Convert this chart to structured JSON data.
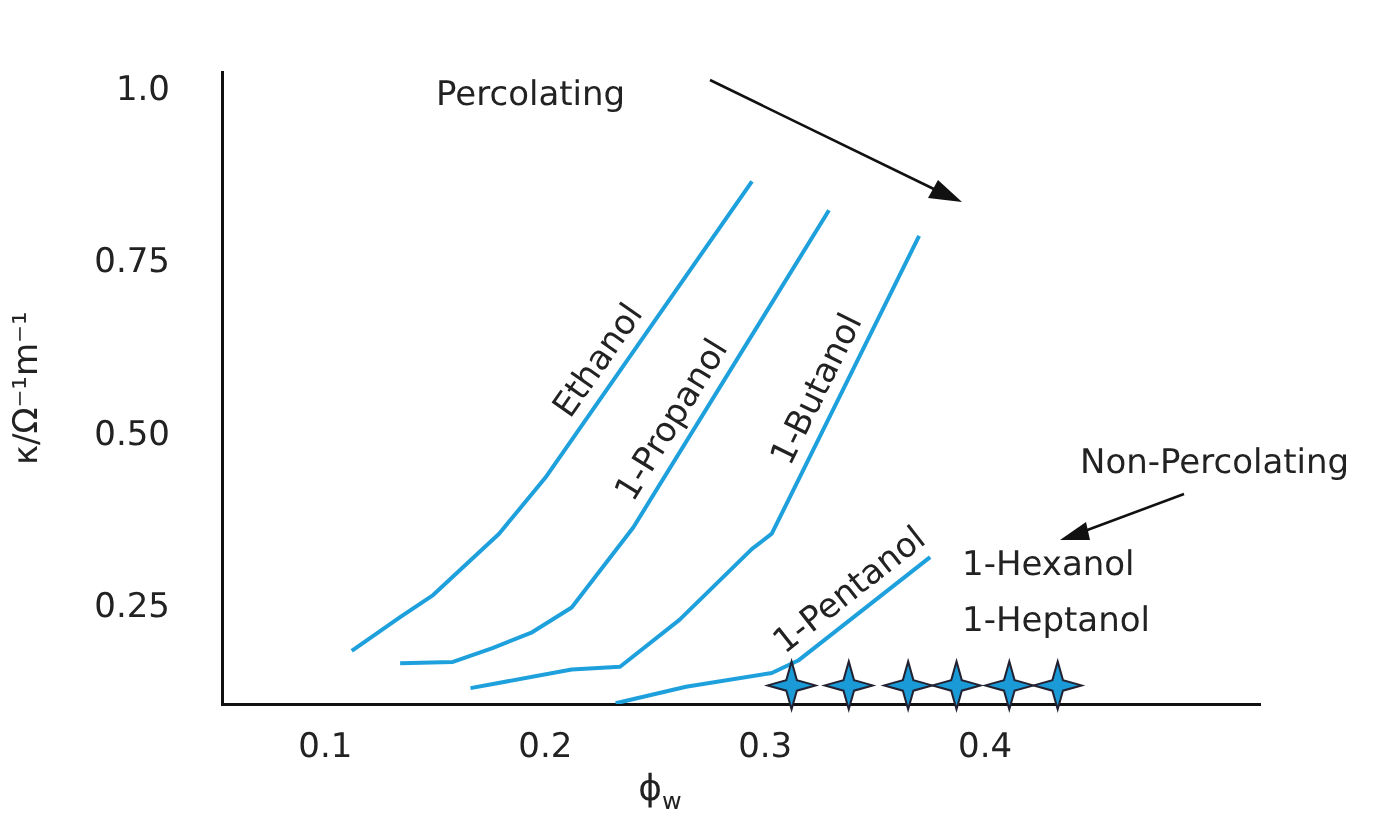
{
  "chart_data": {
    "type": "line",
    "xlabel": "ϕ$_{w}$",
    "ylabel": "κ/Ω⁻¹m⁻¹",
    "xlim": [
      0.053,
      0.525
    ],
    "xticks": [
      0.1,
      0.2,
      0.3,
      0.4
    ],
    "ylim": [
      0.111,
      1.027
    ],
    "yticks": [
      {
        "value": 0.25,
        "label": "0.25"
      },
      {
        "value": 0.5,
        "label": "0.50"
      },
      {
        "value": 0.75,
        "label": "0.75"
      },
      {
        "value": 1.0,
        "label": "1.0"
      }
    ],
    "grid": false,
    "legend": false,
    "series": [
      {
        "name": "Ethanol",
        "color": "#1ea0dc",
        "x": [
          0.112,
          0.134,
          0.149,
          0.179,
          0.2,
          0.294
        ],
        "values": [
          0.188,
          0.237,
          0.269,
          0.358,
          0.439,
          0.869
        ]
      },
      {
        "name": "1-Propanol",
        "color": "#1ea0dc",
        "x": [
          0.134,
          0.158,
          0.176,
          0.194,
          0.212,
          0.24,
          0.329
        ],
        "values": [
          0.17,
          0.172,
          0.192,
          0.215,
          0.251,
          0.367,
          0.827
        ]
      },
      {
        "name": "1-Butanol",
        "color": "#1ea0dc",
        "x": [
          0.166,
          0.212,
          0.234,
          0.261,
          0.294,
          0.303,
          0.37
        ],
        "values": [
          0.134,
          0.161,
          0.165,
          0.233,
          0.336,
          0.358,
          0.79
        ]
      },
      {
        "name": "1-Pentanol",
        "color": "#1ea0dc",
        "x": [
          0.232,
          0.264,
          0.303,
          0.315,
          0.375
        ],
        "values": [
          0.112,
          0.136,
          0.156,
          0.174,
          0.324
        ]
      },
      {
        "type": "scatter",
        "marker": "star",
        "color": "#1a9ad6",
        "x": [
          0.312,
          0.338,
          0.365,
          0.387,
          0.411,
          0.433
        ],
        "values": [
          0.138,
          0.138,
          0.138,
          0.138,
          0.138,
          0.138
        ]
      }
    ],
    "annotations": [
      "Percolating",
      "Non-Percolating",
      "1-Hexanol",
      "1-Heptanol"
    ]
  }
}
